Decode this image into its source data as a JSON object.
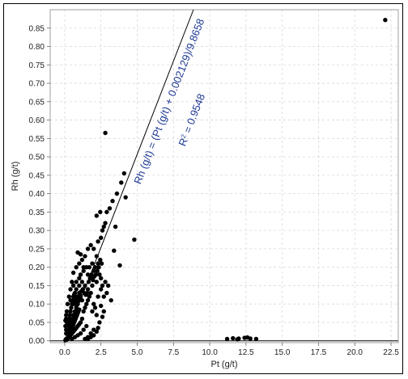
{
  "chart_data": {
    "type": "scatter",
    "title": "",
    "xlabel": "Pt (g/t)",
    "ylabel": "Rh (g/t)",
    "xlim": [
      -1,
      23
    ],
    "ylim": [
      -0.005,
      0.9
    ],
    "xticks": [
      "0.0",
      "2.5",
      "5.0",
      "7.5",
      "10.0",
      "12.5",
      "15.0",
      "17.5",
      "20.0",
      "22.5"
    ],
    "yticks": [
      "0.00",
      "0.05",
      "0.10",
      "0.15",
      "0.20",
      "0.25",
      "0.30",
      "0.35",
      "0.40",
      "0.45",
      "0.50",
      "0.55",
      "0.60",
      "0.65",
      "0.70",
      "0.75",
      "0.80",
      "0.85"
    ],
    "grid": true,
    "fit_line": {
      "intercept": 0.002129,
      "slope_divisor": 9.8658
    },
    "annotations": {
      "equation": "Rh (g/t) = (Pt (g/t) + 0.002129)/9.8658",
      "r2_label": "R",
      "r2_sup": "2",
      "r2_value": " = 0.9548"
    },
    "series": [
      {
        "points": [
          [
            0.05,
            0.002
          ],
          [
            0.1,
            0.005
          ],
          [
            0.15,
            0.003
          ],
          [
            0.2,
            0.008
          ],
          [
            0.25,
            0.012
          ],
          [
            0.3,
            0.015
          ],
          [
            0.35,
            0.02
          ],
          [
            0.4,
            0.025
          ],
          [
            0.45,
            0.03
          ],
          [
            0.5,
            0.035
          ],
          [
            0.55,
            0.04
          ],
          [
            0.6,
            0.045
          ],
          [
            0.65,
            0.05
          ],
          [
            0.7,
            0.055
          ],
          [
            0.75,
            0.06
          ],
          [
            0.8,
            0.065
          ],
          [
            0.85,
            0.07
          ],
          [
            0.9,
            0.075
          ],
          [
            0.95,
            0.08
          ],
          [
            1.0,
            0.085
          ],
          [
            0.1,
            0.02
          ],
          [
            0.2,
            0.03
          ],
          [
            0.3,
            0.04
          ],
          [
            0.4,
            0.05
          ],
          [
            0.5,
            0.06
          ],
          [
            0.6,
            0.07
          ],
          [
            0.7,
            0.08
          ],
          [
            0.8,
            0.09
          ],
          [
            0.9,
            0.1
          ],
          [
            1.0,
            0.11
          ],
          [
            0.2,
            0.005
          ],
          [
            0.3,
            0.01
          ],
          [
            0.4,
            0.015
          ],
          [
            0.5,
            0.02
          ],
          [
            0.6,
            0.025
          ],
          [
            0.7,
            0.03
          ],
          [
            0.8,
            0.035
          ],
          [
            0.9,
            0.04
          ],
          [
            1.0,
            0.045
          ],
          [
            1.1,
            0.05
          ],
          [
            0.3,
            0.06
          ],
          [
            0.4,
            0.08
          ],
          [
            0.5,
            0.1
          ],
          [
            0.6,
            0.12
          ],
          [
            0.7,
            0.13
          ],
          [
            0.8,
            0.14
          ],
          [
            0.9,
            0.12
          ],
          [
            1.0,
            0.13
          ],
          [
            1.1,
            0.12
          ],
          [
            1.2,
            0.11
          ],
          [
            0.5,
            0.005
          ],
          [
            0.7,
            0.01
          ],
          [
            0.9,
            0.015
          ],
          [
            1.1,
            0.02
          ],
          [
            1.3,
            0.03
          ],
          [
            1.5,
            0.04
          ],
          [
            1.2,
            0.06
          ],
          [
            1.3,
            0.08
          ],
          [
            1.4,
            0.09
          ],
          [
            1.5,
            0.1
          ],
          [
            0.6,
            0.15
          ],
          [
            0.8,
            0.16
          ],
          [
            1.0,
            0.17
          ],
          [
            1.2,
            0.16
          ],
          [
            1.4,
            0.15
          ],
          [
            1.6,
            0.14
          ],
          [
            1.7,
            0.12
          ],
          [
            1.8,
            0.13
          ],
          [
            1.6,
            0.11
          ],
          [
            1.9,
            0.15
          ],
          [
            0.4,
            0.11
          ],
          [
            0.6,
            0.1
          ],
          [
            0.8,
            0.12
          ],
          [
            1.0,
            0.15
          ],
          [
            1.1,
            0.18
          ],
          [
            1.3,
            0.19
          ],
          [
            1.5,
            0.2
          ],
          [
            1.7,
            0.2
          ],
          [
            1.9,
            0.21
          ],
          [
            2.0,
            0.19
          ],
          [
            1.2,
            0.22
          ],
          [
            1.4,
            0.23
          ],
          [
            1.6,
            0.25
          ],
          [
            1.8,
            0.26
          ],
          [
            2.0,
            0.25
          ],
          [
            2.2,
            0.23
          ],
          [
            2.3,
            0.21
          ],
          [
            2.1,
            0.2
          ],
          [
            2.4,
            0.18
          ],
          [
            2.5,
            0.17
          ],
          [
            0.9,
            0.24
          ],
          [
            1.0,
            0.21
          ],
          [
            1.3,
            0.2
          ],
          [
            1.6,
            0.18
          ],
          [
            1.8,
            0.17
          ],
          [
            2.2,
            0.16
          ],
          [
            2.6,
            0.15
          ],
          [
            2.8,
            0.16
          ],
          [
            3.0,
            0.15
          ],
          [
            2.0,
            0.1
          ],
          [
            1.4,
            0.005
          ],
          [
            1.6,
            0.01
          ],
          [
            1.8,
            0.02
          ],
          [
            2.0,
            0.03
          ],
          [
            2.2,
            0.07
          ],
          [
            1.9,
            0.08
          ],
          [
            2.1,
            0.09
          ],
          [
            2.3,
            0.12
          ],
          [
            2.5,
            0.14
          ],
          [
            2.7,
            0.12
          ],
          [
            0.1,
            0.06
          ],
          [
            0.15,
            0.05
          ],
          [
            0.05,
            0.04
          ],
          [
            0.1,
            0.03
          ],
          [
            0.2,
            0.045
          ],
          [
            0.25,
            0.055
          ],
          [
            0.35,
            0.07
          ],
          [
            0.45,
            0.09
          ],
          [
            0.55,
            0.11
          ],
          [
            0.65,
            0.125
          ],
          [
            0.7,
            0.11
          ],
          [
            0.75,
            0.1
          ],
          [
            0.85,
            0.105
          ],
          [
            0.95,
            0.115
          ],
          [
            1.05,
            0.125
          ],
          [
            1.15,
            0.135
          ],
          [
            1.25,
            0.14
          ],
          [
            1.35,
            0.13
          ],
          [
            1.45,
            0.125
          ],
          [
            1.55,
            0.13
          ],
          [
            1.65,
            0.16
          ],
          [
            1.75,
            0.17
          ],
          [
            1.85,
            0.18
          ],
          [
            1.95,
            0.165
          ],
          [
            2.05,
            0.175
          ],
          [
            2.15,
            0.18
          ],
          [
            2.25,
            0.19
          ],
          [
            2.35,
            0.2
          ],
          [
            2.45,
            0.22
          ],
          [
            2.55,
            0.21
          ],
          [
            2.3,
            0.27
          ],
          [
            2.5,
            0.28
          ],
          [
            2.6,
            0.3
          ],
          [
            2.8,
            0.32
          ],
          [
            2.9,
            0.35
          ],
          [
            2.45,
            0.35
          ],
          [
            2.2,
            0.34
          ],
          [
            3.3,
            0.38
          ],
          [
            3.1,
            0.36
          ],
          [
            2.7,
            0.31
          ],
          [
            3.5,
            0.31
          ],
          [
            3.6,
            0.4
          ],
          [
            3.9,
            0.43
          ],
          [
            4.1,
            0.455
          ],
          [
            4.2,
            0.39
          ],
          [
            3.8,
            0.205
          ],
          [
            3.4,
            0.245
          ],
          [
            4.8,
            0.275
          ],
          [
            2.9,
            0.13
          ],
          [
            3.2,
            0.11
          ],
          [
            2.8,
            0.565
          ],
          [
            2.5,
            0.095
          ],
          [
            2.7,
            0.08
          ],
          [
            2.6,
            0.065
          ],
          [
            2.4,
            0.05
          ],
          [
            2.3,
            0.035
          ],
          [
            2.2,
            0.025
          ],
          [
            2.0,
            0.015
          ],
          [
            1.8,
            0.01
          ],
          [
            1.6,
            0.005
          ],
          [
            1.1,
            0.235
          ],
          [
            0.8,
            0.2
          ],
          [
            0.6,
            0.185
          ],
          [
            0.5,
            0.16
          ],
          [
            0.4,
            0.14
          ],
          [
            0.3,
            0.12
          ],
          [
            0.2,
            0.1
          ],
          [
            0.15,
            0.08
          ],
          [
            0.1,
            0.07
          ],
          [
            0.05,
            0.055
          ],
          [
            11.2,
            0.005
          ],
          [
            11.6,
            0.007
          ],
          [
            12.0,
            0.006
          ],
          [
            12.4,
            0.008
          ],
          [
            12.8,
            0.006
          ],
          [
            13.2,
            0.005
          ],
          [
            11.9,
            0.004
          ],
          [
            12.6,
            0.009
          ],
          [
            22.1,
            0.872
          ]
        ]
      }
    ]
  }
}
